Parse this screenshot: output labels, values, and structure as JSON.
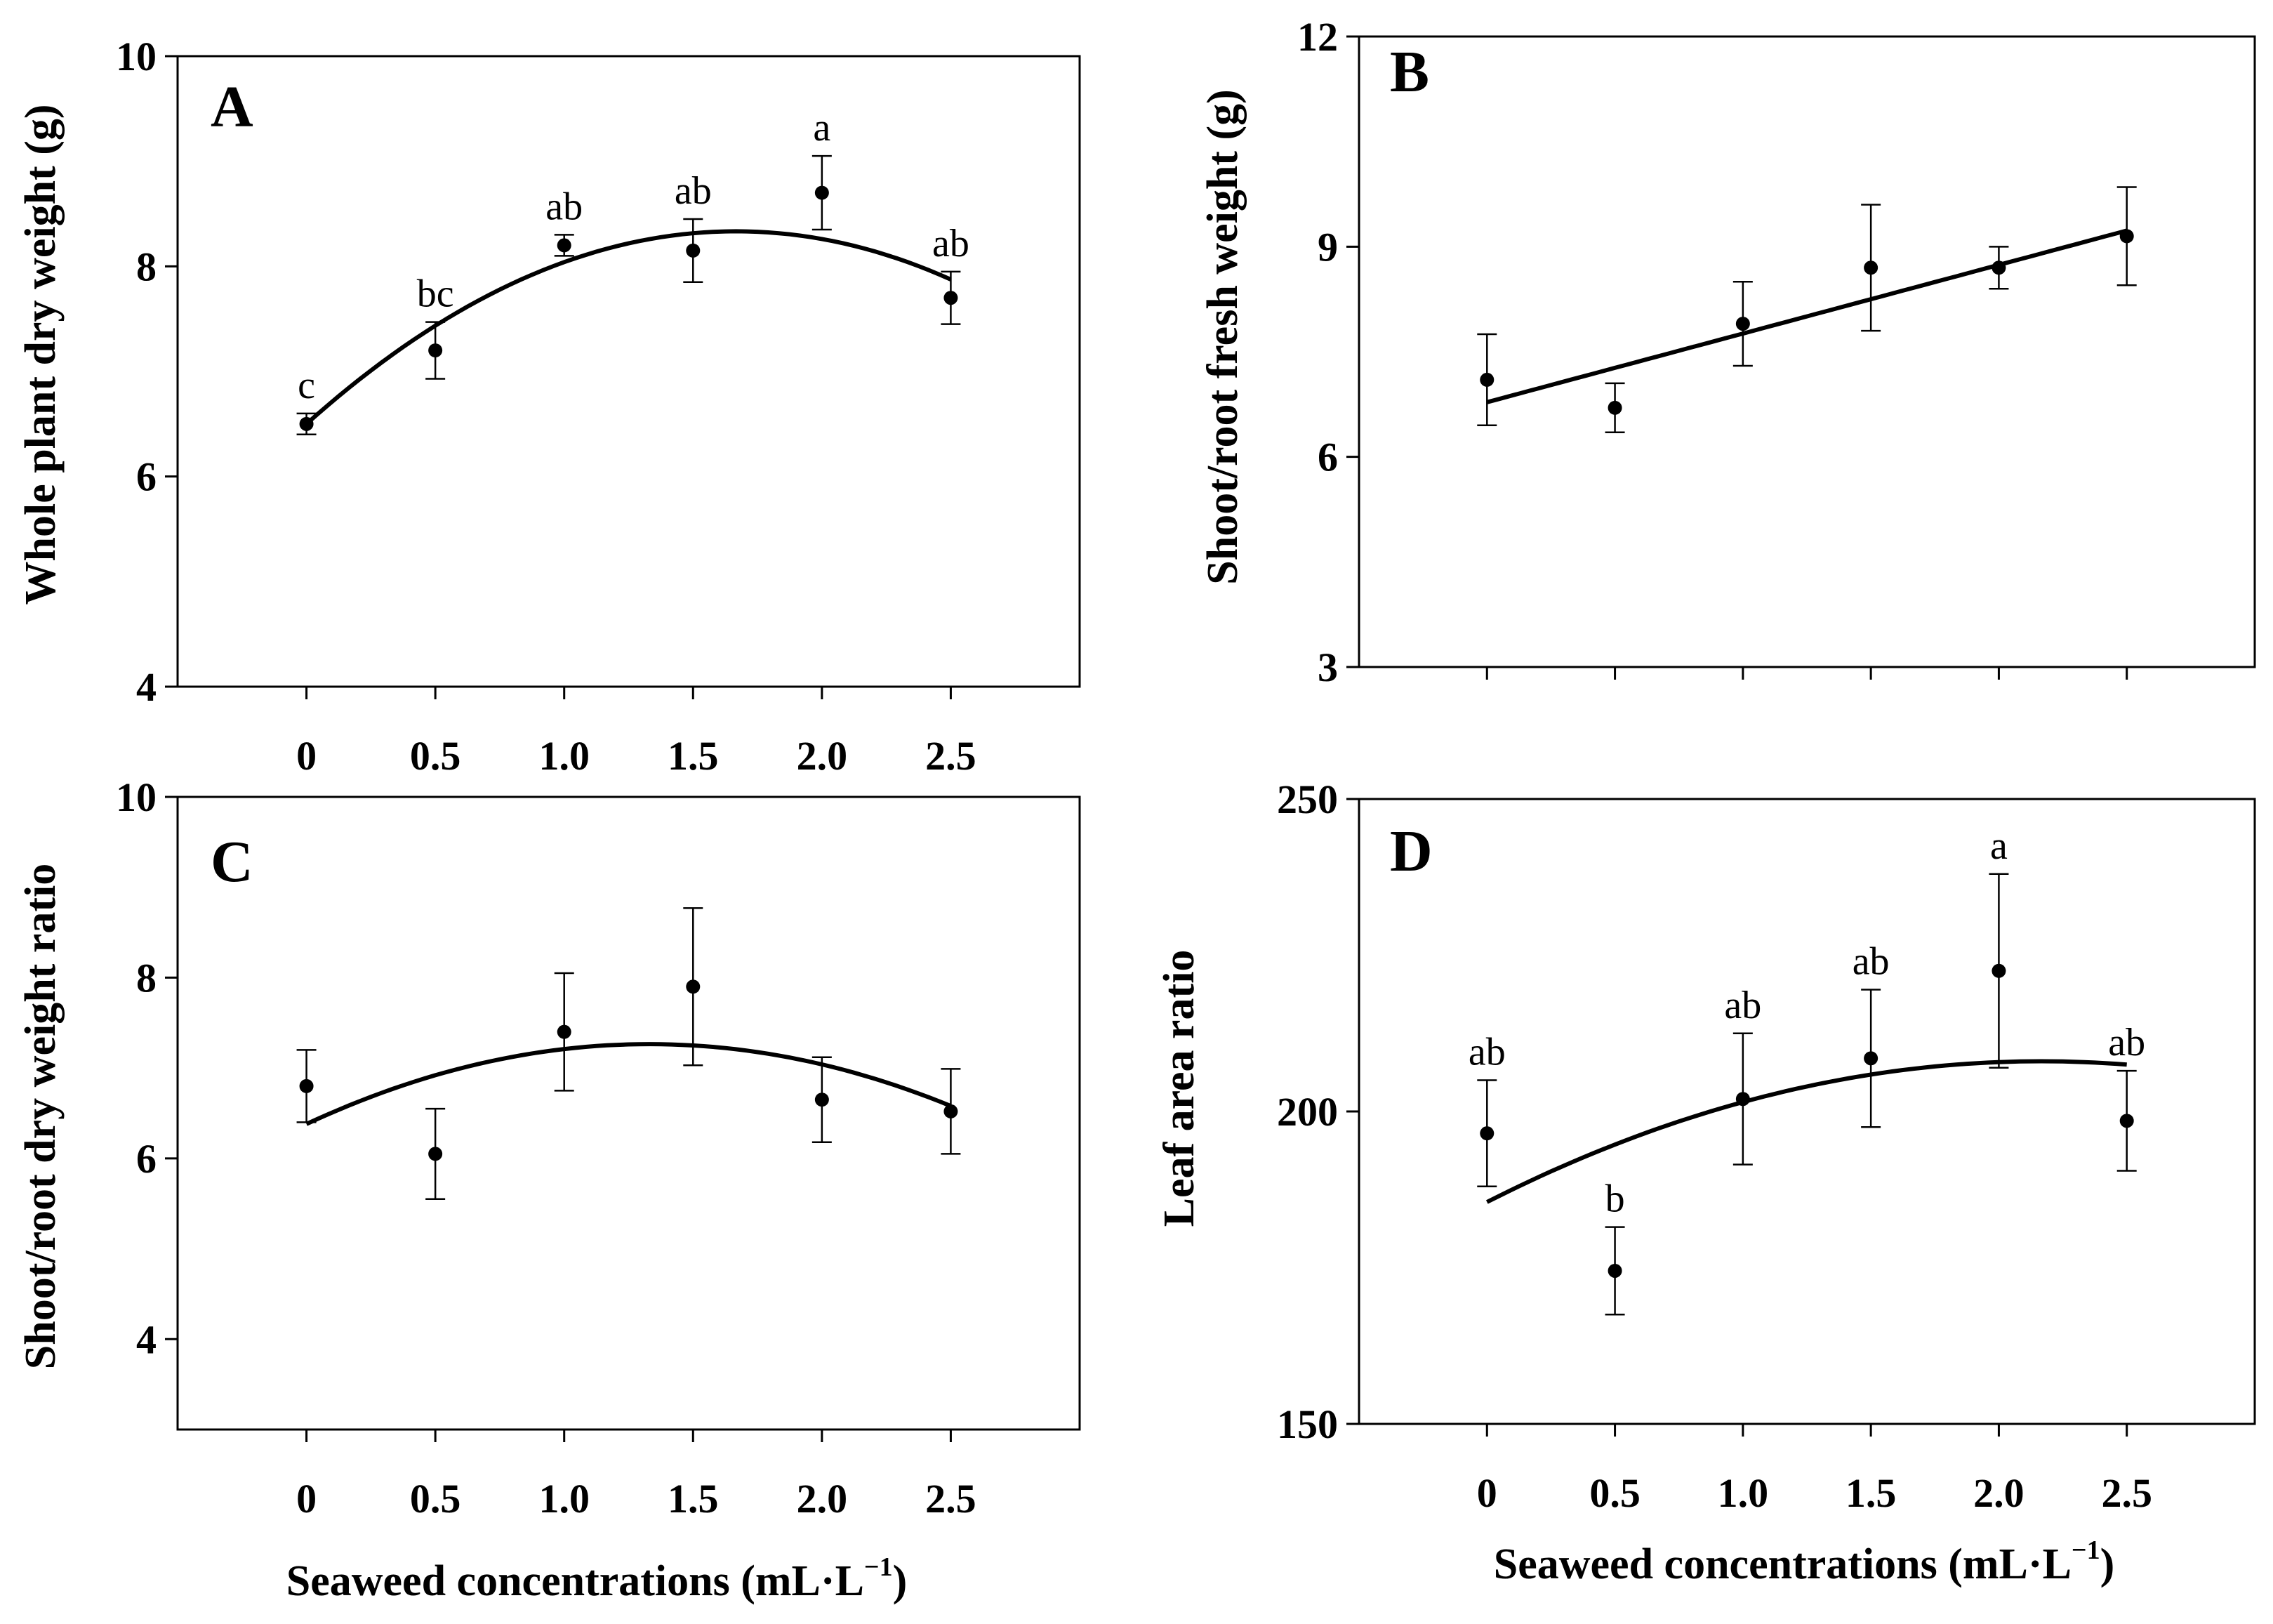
{
  "figure": {
    "x_title_text": "Seaweed concentrations (mL",
    "x_title_unit_sep": "·",
    "x_title_unit": "L",
    "x_title_exponent": "−1",
    "x_title_close": ")"
  },
  "chart_data": [
    {
      "panel": "A",
      "type": "scatter",
      "ylabel": "Whole plant dry weight (g)",
      "xlabel": "Seaweed concentrations (mL·L−1)",
      "x": [
        0,
        0.5,
        1.0,
        1.5,
        2.0,
        2.5
      ],
      "xticks": [
        "0",
        "0.5",
        "1.0",
        "1.5",
        "2.0",
        "2.5"
      ],
      "xlim": [
        -0.5,
        3.0
      ],
      "ylim": [
        4,
        10
      ],
      "yticks": [
        4,
        6,
        8,
        10
      ],
      "yticklabels": [
        "4",
        "6",
        "8",
        "10"
      ],
      "y": [
        6.5,
        7.2,
        8.2,
        8.15,
        8.7,
        7.7
      ],
      "err": [
        0.1,
        0.27,
        0.1,
        0.3,
        0.35,
        0.25
      ],
      "letters": [
        "c",
        "bc",
        "ab",
        "ab",
        "a",
        "ab"
      ],
      "fit": {
        "kind": "quadratic",
        "coef": [
          6.5,
          2.2,
          -0.66
        ]
      }
    },
    {
      "panel": "B",
      "type": "scatter",
      "ylabel": "Shoot/root fresh weight (g)",
      "xlabel": "",
      "x": [
        0,
        0.5,
        1.0,
        1.5,
        2.0,
        2.5
      ],
      "xticks": [],
      "xlim": [
        -0.5,
        3.0
      ],
      "ylim": [
        3,
        12
      ],
      "yticks": [
        3,
        6,
        9,
        12
      ],
      "yticklabels": [
        "3",
        "6",
        "9",
        "12"
      ],
      "y": [
        7.1,
        6.7,
        7.9,
        8.7,
        8.7,
        9.15
      ],
      "err": [
        0.65,
        0.35,
        0.6,
        0.9,
        0.3,
        0.7
      ],
      "letters": [],
      "fit": {
        "kind": "linear",
        "coef": [
          6.78,
          0.98
        ]
      }
    },
    {
      "panel": "C",
      "type": "scatter",
      "ylabel": "Shoot/root dry weight ratio",
      "xlabel": "",
      "x": [
        0,
        0.5,
        1.0,
        1.5,
        2.0,
        2.5
      ],
      "xticks": [
        "0",
        "0.5",
        "1.0",
        "1.5",
        "2.0",
        "2.5"
      ],
      "xlim": [
        -0.5,
        3.0
      ],
      "ylim": [
        3,
        10
      ],
      "yticks": [
        4,
        6,
        8,
        10
      ],
      "yticklabels": [
        "4",
        "6",
        "8",
        "10"
      ],
      "y": [
        6.8,
        6.05,
        7.4,
        7.9,
        6.65,
        6.52
      ],
      "err": [
        0.4,
        0.5,
        0.65,
        0.87,
        0.47,
        0.47
      ],
      "letters": [],
      "fit": {
        "kind": "quadratic",
        "coef": [
          6.38,
          1.33,
          -0.5
        ]
      }
    },
    {
      "panel": "D",
      "type": "scatter",
      "ylabel": "Leaf area ratio",
      "xlabel": "Seaweed concentrations (mL·L−1)",
      "x": [
        0,
        0.5,
        1.0,
        1.5,
        2.0,
        2.5
      ],
      "xticks": [
        "0",
        "0.5",
        "1.0",
        "1.5",
        "2.0",
        "2.5"
      ],
      "xlim": [
        -0.5,
        3.0
      ],
      "ylim": [
        150,
        250
      ],
      "yticks": [
        150,
        200,
        250
      ],
      "yticklabels": [
        "150",
        "200",
        "250"
      ],
      "y": [
        196.5,
        174.5,
        202,
        208.5,
        222.5,
        198.5
      ],
      "err": [
        8.5,
        7,
        10.5,
        11,
        15.5,
        8
      ],
      "letters": [
        "ab",
        "b",
        "ab",
        "ab",
        "a",
        "ab"
      ],
      "fit": {
        "kind": "quadratic",
        "coef": [
          185.5,
          20.8,
          -4.8
        ]
      }
    }
  ]
}
